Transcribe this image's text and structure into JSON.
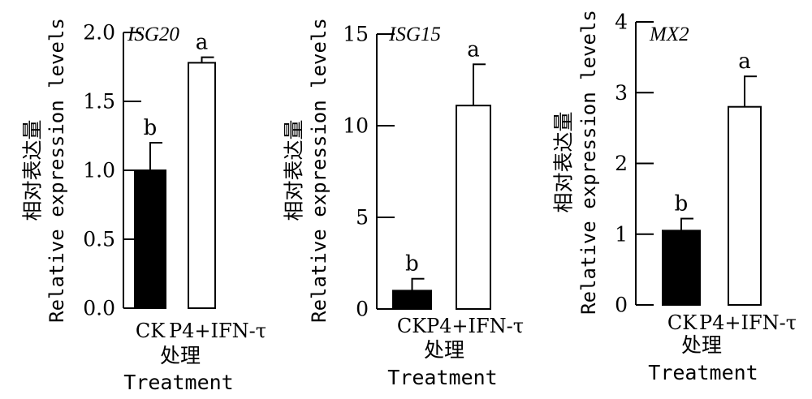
{
  "chart_data": [
    {
      "type": "bar",
      "title": "ISG20",
      "categories": [
        "CK",
        "P4+IFN-τ"
      ],
      "values": [
        1.0,
        1.78
      ],
      "errors": [
        0.2,
        0.04
      ],
      "significance": [
        "b",
        "a"
      ],
      "bar_colors": [
        "#000000",
        "#ffffff"
      ],
      "ylim": [
        0,
        2.0
      ],
      "yticks": [
        "0.0",
        "0.5",
        "1.0",
        "1.5",
        "2.0"
      ],
      "ylabel_cn": "相对表达量",
      "ylabel_en": "Relative expression levels",
      "xlabel_cn": "处理",
      "xlabel_en": "Treatment"
    },
    {
      "type": "bar",
      "title": "ISG15",
      "categories": [
        "CK",
        "P4+IFN-τ"
      ],
      "values": [
        1.0,
        11.1
      ],
      "errors": [
        0.65,
        2.25
      ],
      "significance": [
        "b",
        "a"
      ],
      "bar_colors": [
        "#000000",
        "#ffffff"
      ],
      "ylim": [
        0,
        15
      ],
      "yticks": [
        "0",
        "5",
        "10",
        "15"
      ],
      "ylabel_cn": "相对表达量",
      "ylabel_en": "Relative expression levels",
      "xlabel_cn": "处理",
      "xlabel_en": "Treatment"
    },
    {
      "type": "bar",
      "title": "MX2",
      "categories": [
        "CK",
        "P4+IFN-τ"
      ],
      "values": [
        1.05,
        2.8
      ],
      "errors": [
        0.17,
        0.43
      ],
      "significance": [
        "b",
        "a"
      ],
      "bar_colors": [
        "#000000",
        "#ffffff"
      ],
      "ylim": [
        0,
        4
      ],
      "yticks": [
        "0",
        "1",
        "2",
        "3",
        "4"
      ],
      "ylabel_cn": "相对表达量",
      "ylabel_en": "Relative expression levels",
      "xlabel_cn": "处理",
      "xlabel_en": "Treatment"
    }
  ]
}
